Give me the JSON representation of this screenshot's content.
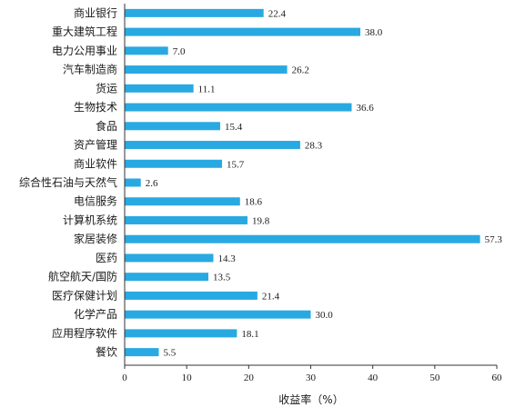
{
  "chart_data": {
    "type": "bar",
    "orientation": "horizontal",
    "categories": [
      "商业银行",
      "重大建筑工程",
      "电力公用事业",
      "汽车制造商",
      "货运",
      "生物技术",
      "食品",
      "资产管理",
      "商业软件",
      "综合性石油与天然气",
      "电信服务",
      "计算机系统",
      "家居装修",
      "医药",
      "航空航天/国防",
      "医疗保健计划",
      "化学产品",
      "应用程序软件",
      "餐饮"
    ],
    "values": [
      22.4,
      38.0,
      7.0,
      26.2,
      11.1,
      36.6,
      15.4,
      28.3,
      15.7,
      2.6,
      18.6,
      19.8,
      57.3,
      14.3,
      13.5,
      21.4,
      30.0,
      18.1,
      5.5
    ],
    "value_labels": [
      "22.4",
      "38.0",
      "7.0",
      "26.2",
      "11.1",
      "36.6",
      "15.4",
      "28.3",
      "15.7",
      "2.6",
      "18.6",
      "19.8",
      "57.3",
      "14.3",
      "13.5",
      "21.4",
      "30.0",
      "18.1",
      "5.5"
    ],
    "xlabel": "收益率（%）",
    "xlim": [
      0,
      60
    ],
    "xticks": [
      "0",
      "10",
      "20",
      "30",
      "40",
      "50",
      "60"
    ],
    "bar_color": "#29a9e1",
    "grid": false
  }
}
